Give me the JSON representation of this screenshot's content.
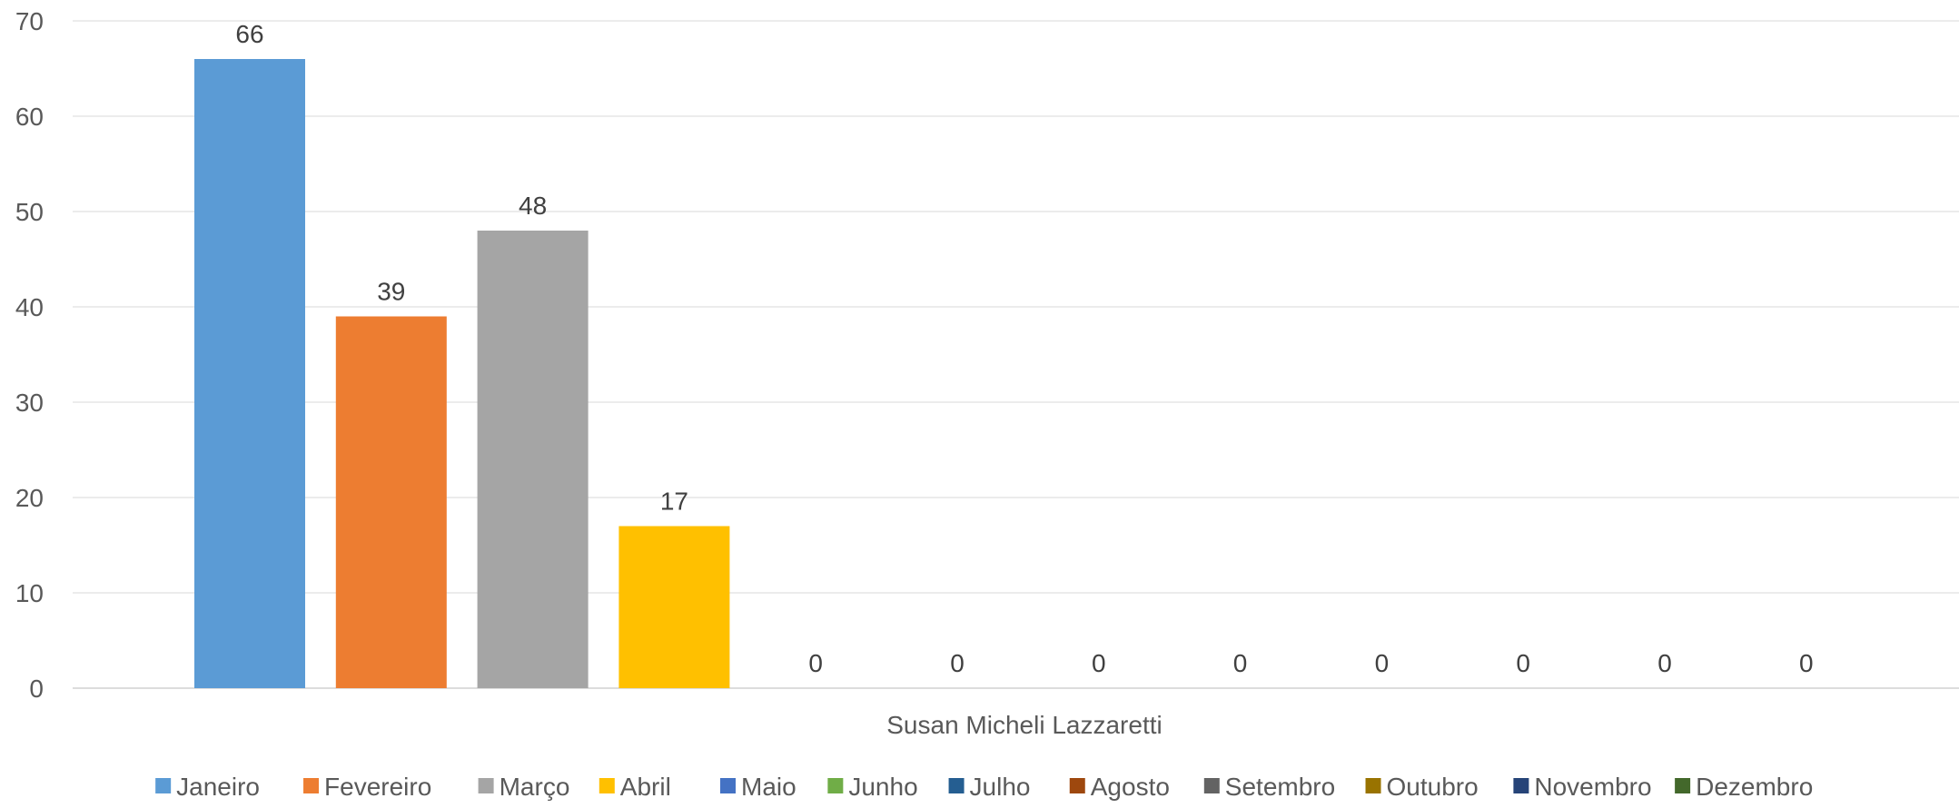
{
  "chart_data": {
    "type": "bar",
    "categories": [
      "Susan Micheli Lazzaretti"
    ],
    "xlabel": "Susan Micheli Lazzaretti",
    "ylim": [
      0,
      70
    ],
    "yticks": [
      0,
      10,
      20,
      30,
      40,
      50,
      60,
      70
    ],
    "grid": true,
    "legend_position": "bottom",
    "series": [
      {
        "name": "Janeiro",
        "values": [
          66
        ],
        "color": "#5B9BD5"
      },
      {
        "name": "Fevereiro",
        "values": [
          39
        ],
        "color": "#ED7D31"
      },
      {
        "name": "Março",
        "values": [
          48
        ],
        "color": "#A5A5A5"
      },
      {
        "name": "Abril",
        "values": [
          17
        ],
        "color": "#FFC000"
      },
      {
        "name": "Maio",
        "values": [
          0
        ],
        "color": "#4472C4"
      },
      {
        "name": "Junho",
        "values": [
          0
        ],
        "color": "#70AD47"
      },
      {
        "name": "Julho",
        "values": [
          0
        ],
        "color": "#255E91"
      },
      {
        "name": "Agosto",
        "values": [
          0
        ],
        "color": "#9E480E"
      },
      {
        "name": "Setembro",
        "values": [
          0
        ],
        "color": "#636363"
      },
      {
        "name": "Outubro",
        "values": [
          0
        ],
        "color": "#997300"
      },
      {
        "name": "Novembro",
        "values": [
          0
        ],
        "color": "#264478"
      },
      {
        "name": "Dezembro",
        "values": [
          0
        ],
        "color": "#43682B"
      }
    ]
  }
}
